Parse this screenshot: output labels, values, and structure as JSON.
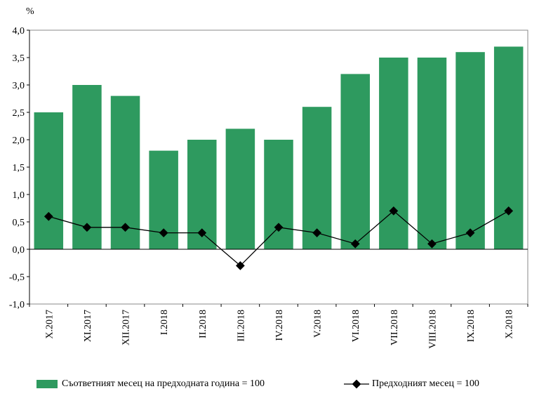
{
  "chart_data": {
    "type": "bar",
    "unit_label": "%",
    "categories": [
      "X.2017",
      "XI.2017",
      "XII.2017",
      "I.2018",
      "II.2018",
      "III.2018",
      "IV.2018",
      "V.2018",
      "VI.2018",
      "VII.2018",
      "VIII.2018",
      "IX.2018",
      "X.2018"
    ],
    "series": [
      {
        "name": "Съответният месец на предходната година = 100",
        "type": "bar",
        "values": [
          2.5,
          3.0,
          2.8,
          1.8,
          2.0,
          2.2,
          2.0,
          2.6,
          3.2,
          3.5,
          3.5,
          3.6,
          3.7
        ]
      },
      {
        "name": "Предходният месец = 100",
        "type": "line",
        "values": [
          0.6,
          0.4,
          0.4,
          0.3,
          0.3,
          -0.3,
          0.4,
          0.3,
          0.1,
          0.7,
          0.1,
          0.3,
          0.7
        ]
      }
    ],
    "ylim": [
      -1.0,
      4.0
    ],
    "yticks": [
      "-1,0",
      "-0,5",
      "0,0",
      "0,5",
      "1,0",
      "1,5",
      "2,0",
      "2,5",
      "3,0",
      "3,5",
      "4,0"
    ],
    "grid": false,
    "legend_position": "bottom",
    "colors": {
      "bar": "#2e9a5f",
      "line": "#000000"
    }
  }
}
